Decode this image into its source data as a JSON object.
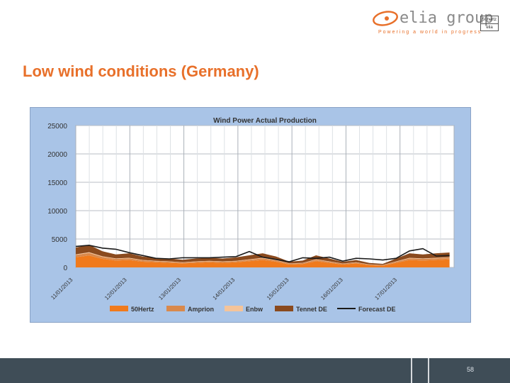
{
  "brand": {
    "name": "elia group",
    "tagline": "Powering a world in progress",
    "badge_line1": "50hertz",
    "badge_line2": "elia",
    "accent": "#e8702a"
  },
  "slide": {
    "title": "Low wind conditions (Germany)",
    "page_number": "58"
  },
  "chart_data": {
    "type": "area",
    "title": "Wind Power Actual Production",
    "xlabel": "",
    "ylabel": "",
    "ylim": [
      0,
      25000
    ],
    "yticks": [
      0,
      5000,
      10000,
      15000,
      20000,
      25000
    ],
    "xlim": [
      "11/01/2013",
      "17/01/2013 22:00"
    ],
    "xticks": [
      "11/01/2013",
      "12/01/2013",
      "13/01/2013",
      "14/01/2013",
      "15/01/2013",
      "16/01/2013",
      "17/01/2013"
    ],
    "grid": true,
    "legend_position": "bottom",
    "x": [
      "11/01 00:00",
      "11/01 06:00",
      "11/01 12:00",
      "11/01 18:00",
      "12/01 00:00",
      "12/01 06:00",
      "12/01 12:00",
      "12/01 18:00",
      "13/01 00:00",
      "13/01 06:00",
      "13/01 12:00",
      "13/01 18:00",
      "14/01 00:00",
      "14/01 06:00",
      "14/01 12:00",
      "14/01 18:00",
      "15/01 00:00",
      "15/01 06:00",
      "15/01 12:00",
      "15/01 18:00",
      "16/01 00:00",
      "16/01 06:00",
      "16/01 12:00",
      "16/01 18:00",
      "17/01 00:00",
      "17/01 06:00",
      "17/01 12:00",
      "17/01 18:00",
      "17/01 22:00"
    ],
    "series": [
      {
        "name": "50Hertz",
        "color": "#f07a1c",
        "values": [
          1800,
          2100,
          1500,
          1200,
          1300,
          1000,
          900,
          800,
          700,
          800,
          900,
          800,
          900,
          1100,
          1300,
          1000,
          500,
          600,
          1100,
          800,
          500,
          700,
          400,
          300,
          800,
          1300,
          1200,
          1300,
          1400
        ]
      },
      {
        "name": "Amprion",
        "color": "#d9894c",
        "values": [
          400,
          450,
          350,
          300,
          300,
          250,
          200,
          200,
          150,
          200,
          200,
          200,
          200,
          250,
          300,
          250,
          150,
          150,
          250,
          200,
          150,
          150,
          100,
          100,
          200,
          300,
          300,
          300,
          300
        ]
      },
      {
        "name": "Enbw",
        "color": "#f5c49a",
        "values": [
          100,
          120,
          100,
          80,
          80,
          70,
          60,
          60,
          50,
          60,
          60,
          60,
          60,
          70,
          80,
          70,
          50,
          50,
          70,
          60,
          40,
          50,
          30,
          30,
          60,
          80,
          80,
          80,
          80
        ]
      },
      {
        "name": "Tennet DE",
        "color": "#8a4a1e",
        "values": [
          1200,
          1300,
          900,
          700,
          800,
          600,
          500,
          500,
          450,
          500,
          550,
          500,
          600,
          700,
          800,
          600,
          300,
          400,
          700,
          500,
          300,
          400,
          250,
          200,
          500,
          800,
          700,
          800,
          850
        ]
      },
      {
        "name": "Forecast DE",
        "color": "#1a1a1a",
        "values": [
          3700,
          3900,
          3400,
          3200,
          2600,
          2100,
          1600,
          1500,
          1700,
          1700,
          1700,
          1800,
          1900,
          2800,
          1800,
          1400,
          1000,
          1700,
          1600,
          1800,
          1100,
          1600,
          1500,
          1300,
          1600,
          2900,
          3300,
          2000,
          2100
        ]
      }
    ]
  }
}
